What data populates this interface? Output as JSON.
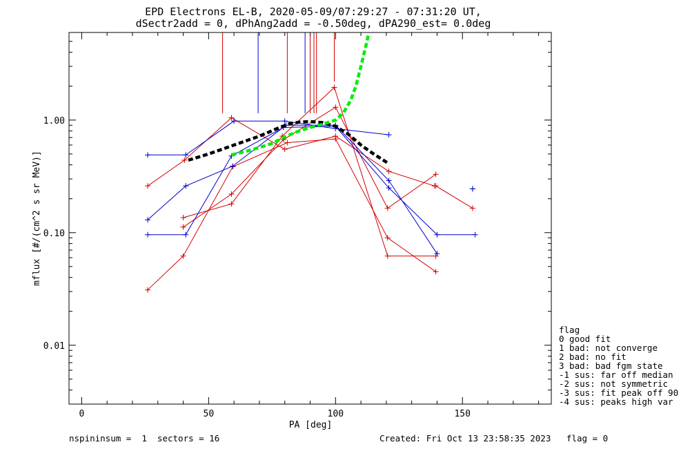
{
  "chart_data": {
    "type": "line",
    "title": "EPD Electrons EL-B, 2020-05-09/07:29:27 - 07:31:20 UT,",
    "subtitle": "dSectr2add = 0, dPhAng2add = -0.50deg, dPA290_est=   0.0deg",
    "xlabel": "PA [deg]",
    "ylabel": "mflux [#/(cm^2 s sr MeV)]",
    "xlim": [
      -5,
      185
    ],
    "ylim": [
      0.003,
      6
    ],
    "yscale": "log",
    "x_ticks": [
      {
        "value": 0,
        "label": "0"
      },
      {
        "value": 50,
        "label": "50"
      },
      {
        "value": 100,
        "label": "100"
      },
      {
        "value": 150,
        "label": "150"
      }
    ],
    "y_ticks": [
      {
        "value": 0.01,
        "label": "0.01"
      },
      {
        "value": 0.1,
        "label": "0.10"
      },
      {
        "value": 1.0,
        "label": "1.00"
      }
    ],
    "grid": false,
    "colors": {
      "red": "#d40000",
      "blue": "#0000cc",
      "green": "#00ee00",
      "black": "#000000"
    },
    "series": [
      {
        "color": "red",
        "x": [
          26,
          40.5,
          59,
          80,
          100,
          121,
          139
        ],
        "y": [
          0.26,
          0.44,
          1.05,
          0.55,
          0.72,
          0.35,
          0.26
        ]
      },
      {
        "color": "red",
        "x": [
          26,
          40,
          59.5,
          81,
          100,
          120.5,
          139.5
        ],
        "y": [
          0.031,
          0.062,
          0.385,
          0.63,
          0.68,
          0.09,
          0.045
        ]
      },
      {
        "color": "red",
        "x": [
          40,
          59,
          79.5,
          100,
          120.5,
          139.5
        ],
        "y": [
          0.112,
          0.22,
          0.67,
          1.3,
          0.165,
          0.33
        ]
      },
      {
        "color": "red",
        "x": [
          40,
          59,
          79,
          99.5,
          120.5,
          139.5
        ],
        "y": [
          0.136,
          0.18,
          0.72,
          1.95,
          0.062,
          0.062
        ]
      },
      {
        "color": "red",
        "x": [
          139.5,
          154
        ],
        "y": [
          0.26,
          0.165
        ]
      },
      {
        "color": "blue",
        "x": [
          26,
          41,
          60,
          80,
          100,
          121
        ],
        "y": [
          0.49,
          0.49,
          0.98,
          0.98,
          0.84,
          0.74
        ]
      },
      {
        "color": "blue",
        "x": [
          26,
          41,
          59.5,
          80.5,
          100,
          121,
          140
        ],
        "y": [
          0.13,
          0.26,
          0.39,
          0.9,
          0.9,
          0.29,
          0.065
        ]
      },
      {
        "color": "blue",
        "x": [
          26,
          41,
          59,
          79.5,
          100,
          121,
          140,
          155
        ],
        "y": [
          0.096,
          0.096,
          0.48,
          0.86,
          0.88,
          0.25,
          0.096,
          0.096
        ]
      },
      {
        "color": "blue",
        "x": [
          154,
          154
        ],
        "y": [
          0.245,
          0.245
        ]
      }
    ],
    "fits": [
      {
        "color": "black",
        "style": "dashed",
        "x": [
          42,
          50,
          60,
          70,
          78,
          82,
          86,
          90,
          95,
          100,
          105,
          110,
          115,
          121
        ],
        "y": [
          0.44,
          0.5,
          0.6,
          0.72,
          0.86,
          0.93,
          0.96,
          0.97,
          0.95,
          0.88,
          0.75,
          0.6,
          0.5,
          0.41
        ]
      },
      {
        "color": "green",
        "style": "dashed",
        "x": [
          59,
          65,
          70,
          75,
          80,
          85,
          90,
          95,
          100,
          103,
          106,
          108,
          110,
          112,
          113
        ],
        "y": [
          0.49,
          0.53,
          0.57,
          0.62,
          0.71,
          0.79,
          0.86,
          0.92,
          1.0,
          1.15,
          1.5,
          2.0,
          3.0,
          4.6,
          5.8
        ]
      }
    ],
    "vertical_lines": [
      {
        "color": "red",
        "x": 55.5,
        "y_low": 1.15
      },
      {
        "color": "blue",
        "x": 69.5,
        "y_low": 1.15
      },
      {
        "color": "red",
        "x": 81,
        "y_low": 1.15
      },
      {
        "color": "blue",
        "x": 88,
        "y_low": 1.15
      },
      {
        "color": "red",
        "x": 90,
        "y_low": 1.15
      },
      {
        "color": "red",
        "x": 91.5,
        "y_low": 1.15
      },
      {
        "color": "red",
        "x": 92.5,
        "y_low": 1.15
      },
      {
        "color": "red",
        "x": 99.5,
        "y_low": 2.2
      }
    ],
    "legend": {
      "title": "flag",
      "placement": "bottom-right",
      "entries": [
        " 0 good fit",
        " 1 bad: not converge",
        " 2 bad: no fit",
        " 3 bad: bad fgm state",
        "-1 sus: far off median",
        "-2 sus: not symmetric",
        "-3 sus: fit peak off 90",
        "-4 sus: peaks high var"
      ]
    },
    "footer": {
      "left": "nspininsum =  1  sectors = 16",
      "right": "Created: Fri Oct 13 23:58:35 2023   flag = 0"
    }
  }
}
